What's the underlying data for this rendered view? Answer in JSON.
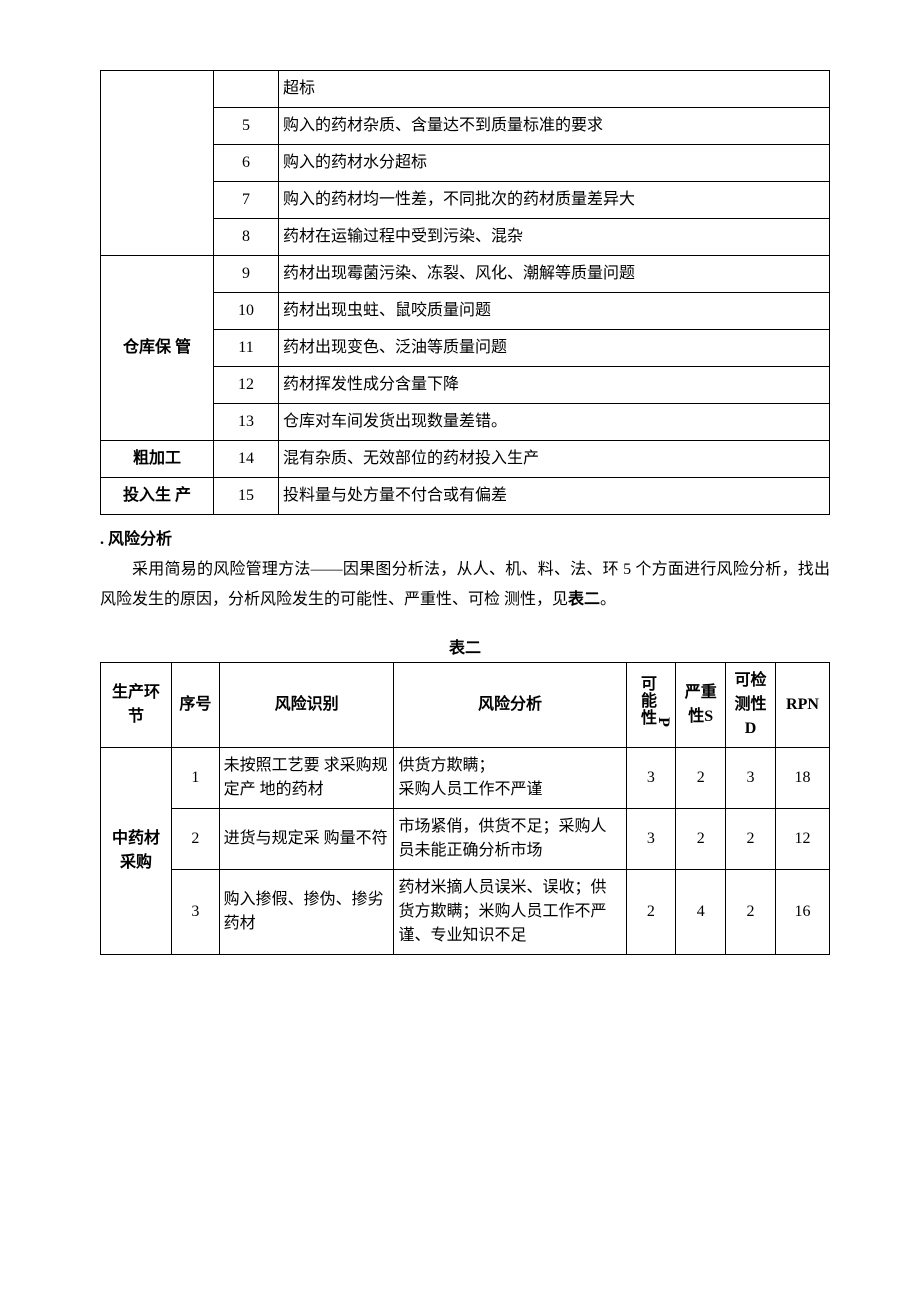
{
  "table1": {
    "sections": [
      {
        "label": "",
        "rows": [
          {
            "num": "",
            "desc": "超标"
          },
          {
            "num": "5",
            "desc": "购入的药材杂质、含量达不到质量标准的要求"
          },
          {
            "num": "6",
            "desc": "购入的药材水分超标"
          },
          {
            "num": "7",
            "desc": "购入的药材均一性差，不同批次的药材质量差异大"
          },
          {
            "num": "8",
            "desc": "药材在运输过程中受到污染、混杂"
          }
        ]
      },
      {
        "label": "仓库保 管",
        "rows": [
          {
            "num": "9",
            "desc": "药材出现霉菌污染、冻裂、风化、潮解等质量问题"
          },
          {
            "num": "10",
            "desc": "药材出现虫蛀、鼠咬质量问题"
          },
          {
            "num": "11",
            "desc": "药材出现变色、泛油等质量问题"
          },
          {
            "num": "12",
            "desc": "药材挥发性成分含量下降"
          },
          {
            "num": "13",
            "desc": "仓库对车间发货出现数量差错。"
          }
        ]
      },
      {
        "label": "粗加工",
        "rows": [
          {
            "num": "14",
            "desc": "混有杂质、无效部位的药材投入生产"
          }
        ]
      },
      {
        "label": "投入生 产",
        "rows": [
          {
            "num": "15",
            "desc": "投料量与处方量不付合或有偏差"
          }
        ]
      }
    ]
  },
  "heading": ". 风险分析",
  "paragraph": "采用简易的风险管理方法——因果图分析法，从人、机、料、法、环 5 个方面进行风险分析，找出风险发生的原因，分析风险发生的可能性、严重性、可检 测性，见",
  "paragraph_bold": "表二",
  "paragraph_end": "。",
  "table2": {
    "caption": "表二",
    "headers": {
      "section": "生产环节",
      "seq": "序号",
      "ident": "风险识别",
      "analysis": "风险分析",
      "p_label": "可能性",
      "p_letter": "P",
      "s": "严重性S",
      "d": "可检测性D",
      "rpn": "RPN"
    },
    "section_label": "中药材 采购",
    "rows": [
      {
        "seq": "1",
        "ident": "未按照工艺要 求采购规定产 地的药材",
        "analysis": "供货方欺瞒；\n采购人员工作不严谨",
        "p": "3",
        "s": "2",
        "d": "3",
        "rpn": "18"
      },
      {
        "seq": "2",
        "ident": "进货与规定采 购量不符",
        "analysis": "市场紧俏，供货不足；采购人员未能正确分析市场",
        "p": "3",
        "s": "2",
        "d": "2",
        "rpn": "12"
      },
      {
        "seq": "3",
        "ident": "购入掺假、掺伪、掺劣药材",
        "analysis": "药材米摘人员误米、误收；供货方欺瞒；米购人员工作不严谨、专业知识不足",
        "p": "2",
        "s": "4",
        "d": "2",
        "rpn": "16"
      }
    ]
  }
}
